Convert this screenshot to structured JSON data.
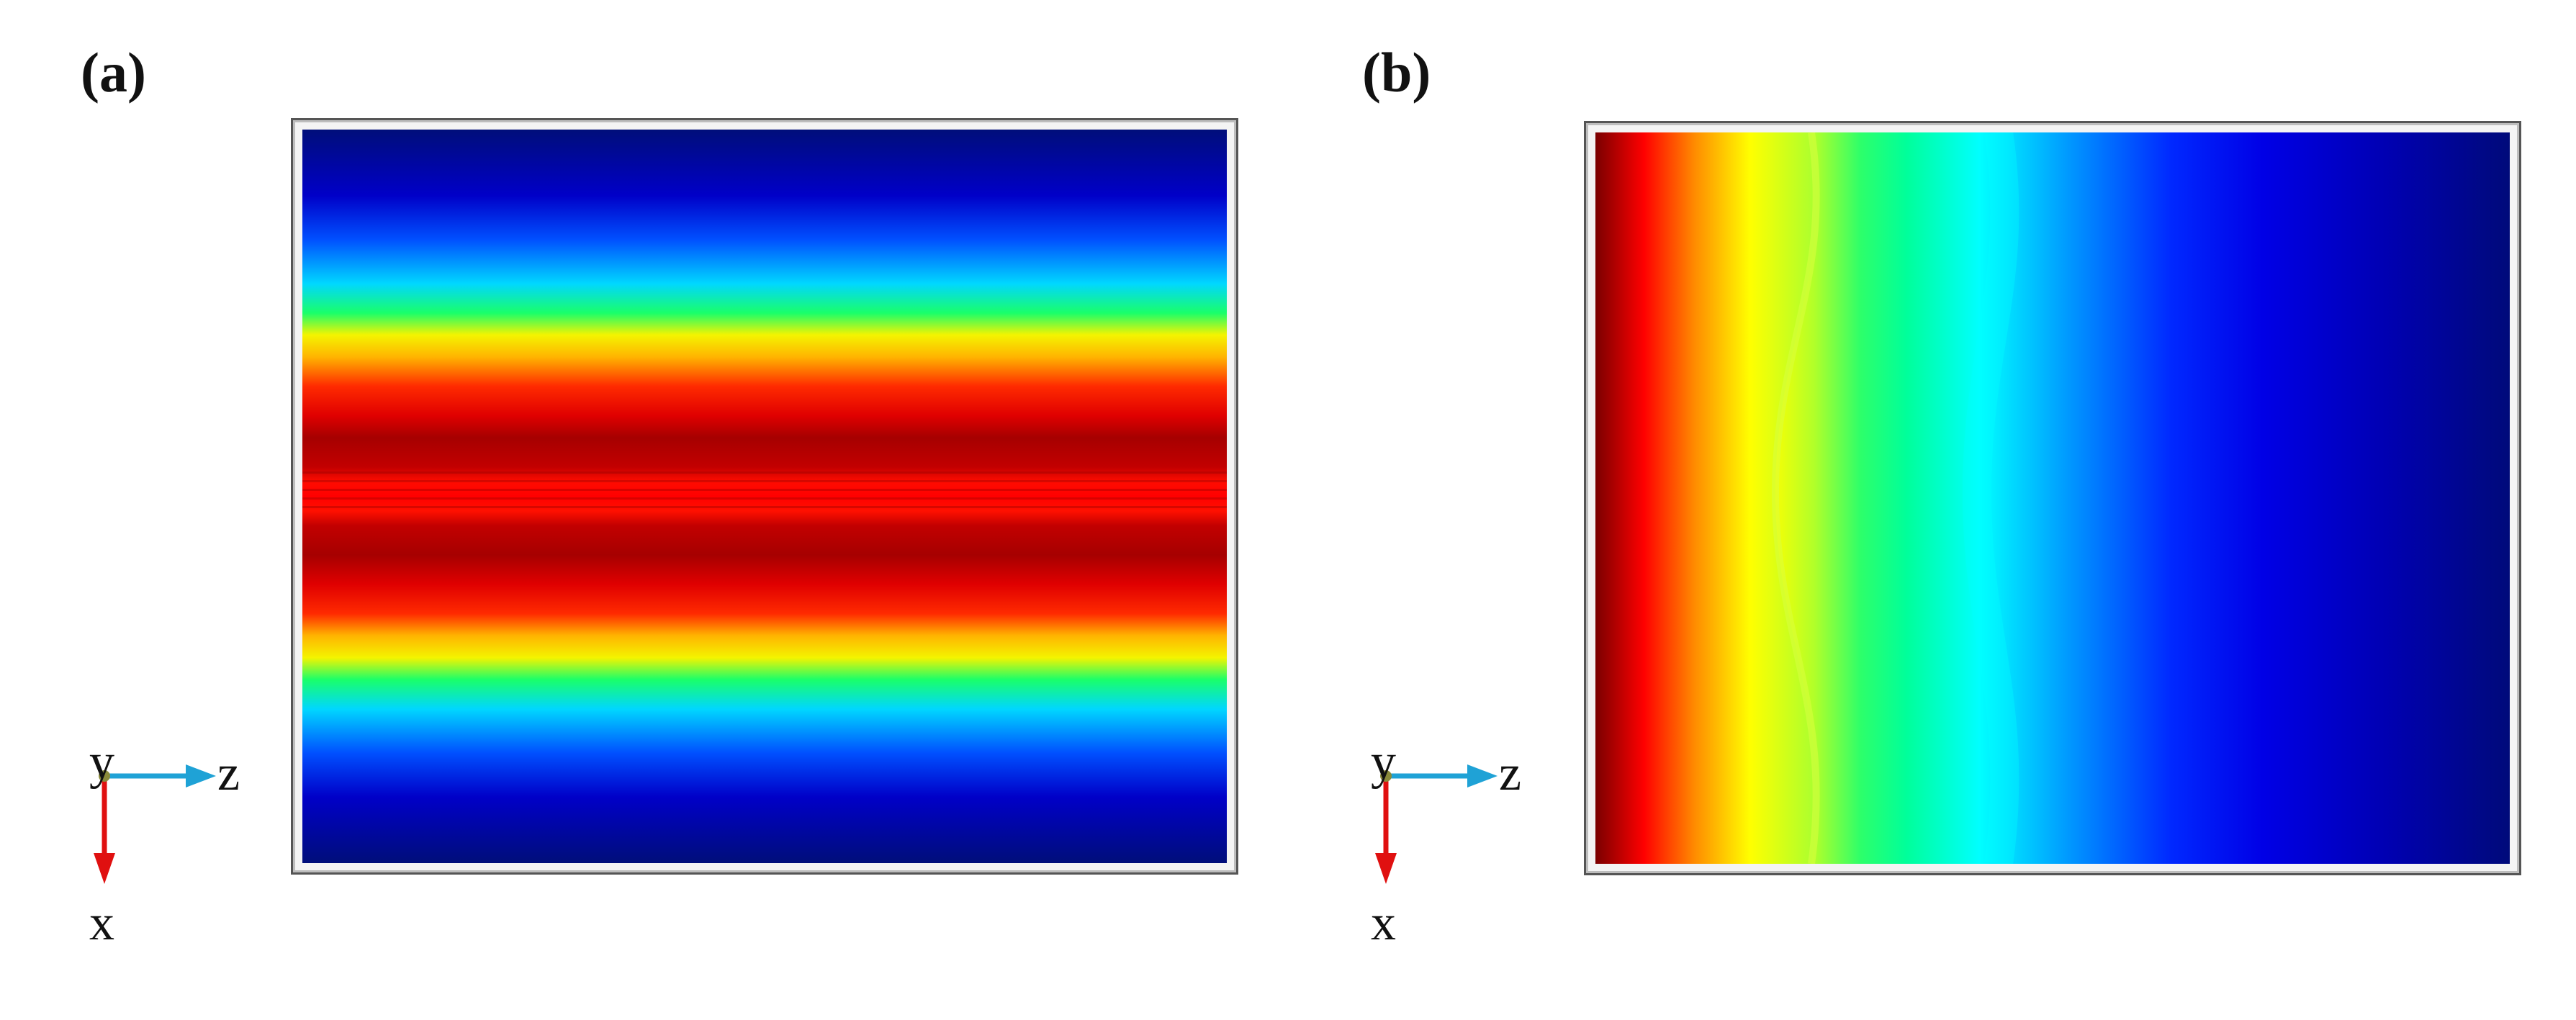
{
  "figure": {
    "panels": [
      {
        "label": "(a)",
        "axes": {
          "vertical_label": "y",
          "right_label": "z",
          "down_label": "x"
        },
        "colors": {
          "right_arrow": "#1fa2d6",
          "down_arrow": "#e01010"
        }
      },
      {
        "label": "(b)",
        "axes": {
          "vertical_label": "y",
          "right_label": "z",
          "down_label": "x"
        },
        "colors": {
          "right_arrow": "#1fa2d6",
          "down_arrow": "#e01010"
        }
      }
    ],
    "colormap": "jet"
  }
}
